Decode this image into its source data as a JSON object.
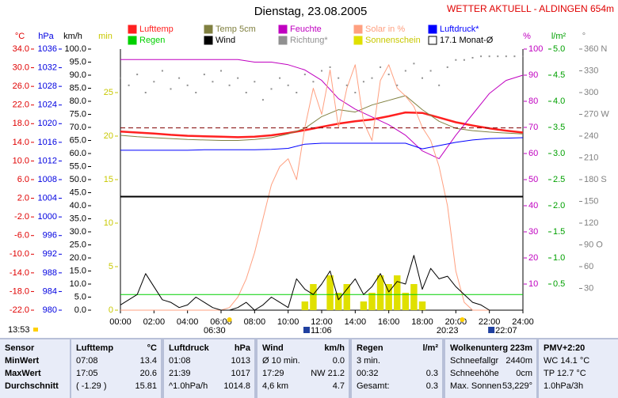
{
  "chart_data": {
    "type": "line",
    "title": "Dienstag, 23.08.2005",
    "subtitle": "WETTER AKTUELL - ALDINGEN 654m",
    "time": "13:53",
    "sun_events": [
      "06:30",
      "20:23"
    ],
    "moon_events": [
      "11:06",
      "22:07"
    ],
    "xlim": [
      0,
      24
    ],
    "xticks": [
      {
        "value": 0,
        "label": "00:00"
      },
      {
        "value": 2,
        "label": "02:00"
      },
      {
        "value": 4,
        "label": "04:00"
      },
      {
        "value": 6,
        "label": "06:00"
      },
      {
        "value": 8,
        "label": "08:00"
      },
      {
        "value": 10,
        "label": "10:00"
      },
      {
        "value": 12,
        "label": "12:00"
      },
      {
        "value": 14,
        "label": "14:00"
      },
      {
        "value": 16,
        "label": "16:00"
      },
      {
        "value": 18,
        "label": "18:00"
      },
      {
        "value": 20,
        "label": "20:00"
      },
      {
        "value": 22,
        "label": "22:00"
      },
      {
        "value": 24,
        "label": "24:00"
      }
    ],
    "axes": [
      {
        "unit": "°C",
        "side": "left",
        "color": "#e00000",
        "lim": [
          -22,
          34
        ],
        "ticks": [
          {
            "value": 34,
            "label": "34.0"
          },
          {
            "value": 30,
            "label": "30.0"
          },
          {
            "value": 26,
            "label": "26.0"
          },
          {
            "value": 22,
            "label": "22.0"
          },
          {
            "value": 18,
            "label": "18.0"
          },
          {
            "value": 14,
            "label": "14.0"
          },
          {
            "value": 10,
            "label": "10.0"
          },
          {
            "value": 6,
            "label": "6.0"
          },
          {
            "value": 2,
            "label": "2.0"
          },
          {
            "value": -2,
            "label": "-2.0"
          },
          {
            "value": -6,
            "label": "-6.0"
          },
          {
            "value": -10,
            "label": "-10.0"
          },
          {
            "value": -14,
            "label": "-14.0"
          },
          {
            "value": -18,
            "label": "-18.0"
          },
          {
            "value": -22,
            "label": "-22.0"
          }
        ]
      },
      {
        "unit": "hPa",
        "side": "left",
        "color": "#0000e0",
        "lim": [
          980,
          1036
        ],
        "ticks": [
          1036,
          1032,
          1028,
          1024,
          1020,
          1016,
          1012,
          1008,
          1004,
          1000,
          996,
          992,
          988,
          984,
          980
        ]
      },
      {
        "unit": "km/h",
        "side": "left",
        "color": "#000000",
        "lim": [
          0,
          100
        ],
        "ticks": [
          {
            "value": 100,
            "label": "100.0"
          },
          {
            "value": 95,
            "label": "95.0"
          },
          {
            "value": 90,
            "label": "90.0"
          },
          {
            "value": 85,
            "label": "85.0"
          },
          {
            "value": 80,
            "label": "80.0"
          },
          {
            "value": 75,
            "label": "75.0"
          },
          {
            "value": 70,
            "label": "70.0"
          },
          {
            "value": 65,
            "label": "65.0"
          },
          {
            "value": 60,
            "label": "60.0"
          },
          {
            "value": 55,
            "label": "55.0"
          },
          {
            "value": 50,
            "label": "50.0"
          },
          {
            "value": 45,
            "label": "45.0"
          },
          {
            "value": 40,
            "label": "40.0"
          },
          {
            "value": 35,
            "label": "35.0"
          },
          {
            "value": 30,
            "label": "30.0"
          },
          {
            "value": 25,
            "label": "25.0"
          },
          {
            "value": 20,
            "label": "20.0"
          },
          {
            "value": 15,
            "label": "15.0"
          },
          {
            "value": 10,
            "label": "10.0"
          },
          {
            "value": 5,
            "label": "5.0"
          },
          {
            "value": 0,
            "label": "0.0"
          }
        ]
      },
      {
        "unit": "min",
        "side": "left",
        "color": "#c8c800",
        "lim": [
          0,
          30
        ],
        "ticks": [
          25,
          20,
          15,
          10,
          5,
          0
        ]
      },
      {
        "unit": "%",
        "side": "right",
        "color": "#c000c0",
        "lim": [
          0,
          100
        ],
        "ticks": [
          100,
          90,
          80,
          70,
          60,
          50,
          40,
          30,
          20,
          10
        ]
      },
      {
        "unit": "l/m²",
        "side": "right",
        "color": "#00a000",
        "lim": [
          0,
          5
        ],
        "ticks": [
          {
            "value": 5,
            "label": "5.0"
          },
          {
            "value": 4.5,
            "label": "4.5"
          },
          {
            "value": 4,
            "label": "4.0"
          },
          {
            "value": 3.5,
            "label": "3.5"
          },
          {
            "value": 3,
            "label": "3.0"
          },
          {
            "value": 2.5,
            "label": "2.5"
          },
          {
            "value": 2,
            "label": "2.0"
          },
          {
            "value": 1.5,
            "label": "1.5"
          },
          {
            "value": 1,
            "label": "1.0"
          },
          {
            "value": 0.5,
            "label": "0.5"
          }
        ]
      },
      {
        "unit": "°",
        "side": "right",
        "color": "#808080",
        "lim": [
          0,
          360
        ],
        "ticks": [
          {
            "value": 360,
            "label": "360 N"
          },
          330,
          300,
          {
            "value": 270,
            "label": "270 W"
          },
          240,
          210,
          {
            "value": 180,
            "label": "180 S"
          },
          150,
          120,
          {
            "value": 90,
            "label": "90 O"
          },
          60,
          30
        ]
      }
    ],
    "series": [
      {
        "name": "Lufttemp",
        "color": "#ff2020",
        "axis": "°C",
        "style": "line",
        "width": 2.5,
        "x": [
          0,
          1,
          2,
          3,
          4,
          5,
          6,
          7,
          8,
          9,
          10,
          11,
          12,
          13,
          14,
          15,
          16,
          17,
          18,
          19,
          20,
          21,
          22,
          23,
          24
        ],
        "values": [
          16.3,
          16.1,
          15.9,
          15.6,
          15.4,
          15.3,
          15.2,
          15.1,
          15.2,
          15.5,
          16.0,
          16.6,
          17.3,
          18.0,
          18.5,
          18.9,
          19.6,
          20.4,
          20.3,
          19.3,
          18.3,
          17.6,
          17.0,
          16.5,
          16.1
        ]
      },
      {
        "name": "Temp 5cm",
        "color": "#808040",
        "axis": "°C",
        "style": "line",
        "width": 1,
        "x": [
          0,
          1,
          2,
          3,
          4,
          5,
          6,
          7,
          8,
          9,
          10,
          11,
          12,
          13,
          14,
          15,
          16,
          17,
          18,
          19,
          20,
          21,
          22,
          23,
          24
        ],
        "values": [
          15.5,
          15.2,
          15.0,
          14.8,
          14.6,
          14.5,
          14.4,
          14.4,
          14.6,
          15.0,
          15.8,
          17.0,
          19.5,
          21.0,
          20.5,
          22.0,
          23.0,
          24.0,
          21.0,
          18.5,
          17.0,
          16.5,
          16.2,
          16.0,
          15.8
        ]
      },
      {
        "name": "Feuchte",
        "color": "#c000c0",
        "axis": "%",
        "style": "line",
        "width": 1,
        "x": [
          0,
          1,
          2,
          3,
          4,
          5,
          6,
          7,
          8,
          9,
          10,
          11,
          12,
          13,
          14,
          15,
          16,
          17,
          18,
          19,
          20,
          21,
          22,
          23,
          24
        ],
        "values": [
          96,
          96,
          96,
          96,
          96,
          96,
          96,
          96,
          95,
          95,
          94,
          92,
          88,
          81,
          77,
          74,
          71,
          67,
          61,
          58,
          67,
          75,
          83,
          88,
          90
        ]
      },
      {
        "name": "Solar in %",
        "color": "#ffa080",
        "axis": "%",
        "style": "line",
        "width": 1,
        "x": [
          0,
          0.5,
          1,
          1.5,
          2,
          2.5,
          3,
          3.5,
          4,
          4.5,
          5,
          5.5,
          6,
          6.5,
          7,
          7.5,
          8,
          8.5,
          9,
          9.5,
          10,
          10.5,
          11,
          11.5,
          12,
          12.5,
          13,
          13.5,
          14,
          14.5,
          15,
          15.5,
          16,
          16.5,
          17,
          17.5,
          18,
          18.5,
          19,
          19.5,
          20,
          20.5,
          21,
          21.5,
          22,
          22.5,
          23,
          23.5,
          24
        ],
        "values": [
          0,
          0,
          0,
          0,
          0,
          0,
          0,
          0,
          0,
          0,
          0,
          0,
          0,
          1,
          5,
          12,
          22,
          35,
          48,
          55,
          58,
          50,
          70,
          85,
          75,
          92,
          70,
          85,
          94,
          72,
          65,
          88,
          94,
          85,
          82,
          78,
          70,
          65,
          55,
          40,
          15,
          3,
          0,
          0,
          0,
          0,
          0,
          0,
          0
        ]
      },
      {
        "name": "Luftdruck*",
        "color": "#0000ff",
        "axis": "hPa",
        "style": "line",
        "width": 1,
        "x": [
          0,
          1,
          2,
          3,
          4,
          5,
          6,
          7,
          8,
          9,
          10,
          11,
          12,
          13,
          14,
          15,
          16,
          17,
          18,
          19,
          20,
          21,
          22,
          23,
          24
        ],
        "values": [
          1014.3,
          1014.3,
          1014.3,
          1014.3,
          1014.3,
          1014.4,
          1014.4,
          1014.4,
          1014.4,
          1014.5,
          1014.7,
          1015.6,
          1015.8,
          1015.8,
          1015.8,
          1015.8,
          1015.8,
          1015.8,
          1014.6,
          1015.3,
          1016.0,
          1016.5,
          1016.8,
          1016.9,
          1017.0
        ]
      },
      {
        "name": "Regen",
        "color": "#00d000",
        "axis": "l/m²",
        "style": "line",
        "width": 1,
        "x": [
          0,
          24
        ],
        "values": [
          0.3,
          0.3
        ]
      },
      {
        "name": "Wind",
        "color": "#000000",
        "axis": "km/h",
        "style": "line",
        "width": 1,
        "x": [
          0,
          0.5,
          1,
          1.5,
          2,
          2.5,
          3,
          3.5,
          4,
          4.5,
          5,
          5.5,
          6,
          6.5,
          7,
          7.5,
          8,
          8.5,
          9,
          9.5,
          10,
          10.5,
          11,
          11.5,
          12,
          12.5,
          13,
          13.5,
          14,
          14.5,
          15,
          15.5,
          16,
          16.5,
          17,
          17.5,
          18,
          18.5,
          19,
          19.5,
          20,
          20.5,
          21,
          21.5,
          22,
          22.5,
          23,
          23.5,
          24
        ],
        "values": [
          2,
          4,
          6,
          14,
          9,
          4,
          3,
          1,
          2,
          5,
          3,
          1,
          0,
          0,
          1,
          3,
          0,
          2,
          5,
          3,
          1,
          12,
          8,
          6,
          10,
          15,
          4,
          8,
          12,
          6,
          9,
          14,
          7,
          11,
          10,
          21,
          8,
          16,
          12,
          13,
          9,
          6,
          3,
          2,
          0,
          0,
          0,
          0,
          0
        ]
      },
      {
        "name": "Richtung*",
        "color": "#909090",
        "axis": "°",
        "style": "dots",
        "width": 1,
        "x": [
          0,
          0.5,
          1,
          1.5,
          2,
          2.5,
          3,
          3.5,
          4,
          4.5,
          5,
          5.5,
          6,
          6.5,
          7,
          7.5,
          8,
          8.5,
          9,
          9.5,
          10,
          10.5,
          11,
          11.5,
          12,
          12.5,
          13,
          13.5,
          14,
          14.5,
          15,
          15.5,
          16,
          16.5,
          17,
          17.5,
          18,
          18.5,
          19,
          19.5,
          20,
          20.5,
          21,
          21.5,
          22,
          22.5,
          23,
          23.5,
          24
        ],
        "values": [
          320,
          310,
          325,
          300,
          315,
          330,
          305,
          320,
          310,
          300,
          325,
          315,
          330,
          310,
          320,
          300,
          315,
          290,
          305,
          320,
          310,
          300,
          325,
          315,
          330,
          335,
          320,
          310,
          300,
          315,
          320,
          335,
          325,
          310,
          330,
          340,
          320,
          330,
          310,
          335,
          345,
          345,
          348,
          350,
          350,
          350,
          350,
          350,
          350
        ]
      },
      {
        "name": "Sonnenschein",
        "color": "#e0e000",
        "axis": "min",
        "style": "bars",
        "width": 0.4,
        "x": [
          11,
          11.5,
          12,
          12.5,
          13,
          13.5,
          14,
          14.5,
          15,
          15.5,
          16,
          16.5,
          17,
          17.5,
          18
        ],
        "values": [
          1,
          3,
          0,
          4,
          2,
          3,
          0,
          1,
          2,
          4,
          3,
          4,
          2,
          3,
          1
        ]
      },
      {
        "name": "17.1 Monat-Ø",
        "color": "#800000",
        "axis": "°C",
        "style": "dash",
        "width": 1,
        "x": [
          0,
          24
        ],
        "values": [
          17.1,
          17.1
        ]
      }
    ],
    "lines": [
      {
        "axis": "km/h",
        "value": 43.5,
        "color": "#000000"
      }
    ]
  },
  "table": {
    "rows": [
      [
        "Sensor",
        "Lufttemp",
        "°C",
        "Luftdruck",
        "hPa",
        "Wind",
        "km/h",
        "Regen",
        "l/m²",
        "Wolkenunterg",
        "223m",
        "PMV+2:20"
      ],
      [
        "MinWert",
        "07:08",
        "13.4",
        "01:08",
        "1013",
        "Ø 10 min.",
        "0.0",
        "3 min.",
        null,
        "Schneefallgr",
        "2440m",
        "WC 14.1 °C"
      ],
      [
        "MaxWert",
        "17:05",
        "20.6",
        "21:39",
        "1017",
        "17:29",
        "NW 21.2",
        "00:32",
        "0.3",
        "Schneehöhe",
        "0cm",
        "TP 12.7 °C"
      ],
      [
        "Durchschnitt",
        "( -1.29 )",
        "15.81",
        "^1.0hPa/h",
        "1014.8",
        "4,6 km",
        "4.7",
        "Gesamt:",
        "0.3",
        "Max. Sonnen",
        "53,229°",
        "1.0hPa/3h"
      ]
    ]
  }
}
